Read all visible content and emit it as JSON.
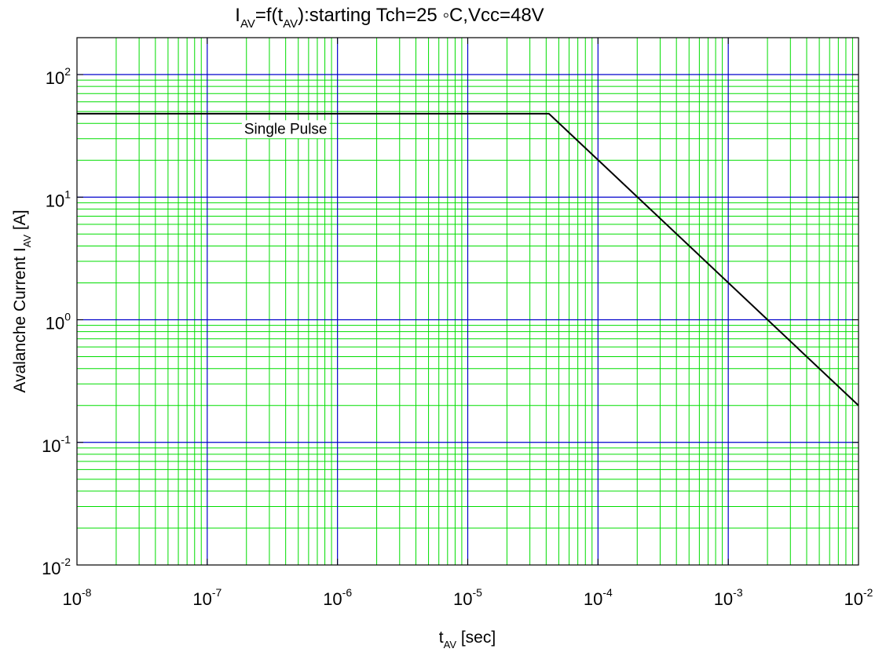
{
  "chart_data": {
    "type": "line",
    "title": {
      "parts": [
        {
          "text": "I",
          "sub": false
        },
        {
          "text": "AV",
          "sub": true
        },
        {
          "text": "=f(t",
          "sub": false
        },
        {
          "text": "AV",
          "sub": true
        },
        {
          "text": "):starting Tch=25 ◦C,Vcc=48V",
          "sub": false
        }
      ]
    },
    "xlabel": {
      "parts": [
        {
          "text": "t",
          "sub": false
        },
        {
          "text": "AV",
          "sub": true
        },
        {
          "text": " [sec]",
          "sub": false
        }
      ]
    },
    "ylabel": {
      "parts": [
        {
          "text": "Avalanche Current I",
          "sub": false
        },
        {
          "text": "AV",
          "sub": true
        },
        {
          "text": "  [A]",
          "sub": false
        }
      ]
    },
    "x_scale": "log",
    "y_scale": "log",
    "xlim": [
      1e-08,
      0.01
    ],
    "ylim": [
      0.01,
      200
    ],
    "x_ticks": [
      {
        "value": 1e-08,
        "base": "10",
        "exp": "-8"
      },
      {
        "value": 1e-07,
        "base": "10",
        "exp": "-7"
      },
      {
        "value": 1e-06,
        "base": "10",
        "exp": "-6"
      },
      {
        "value": 1e-05,
        "base": "10",
        "exp": "-5"
      },
      {
        "value": 0.0001,
        "base": "10",
        "exp": "-4"
      },
      {
        "value": 0.001,
        "base": "10",
        "exp": "-3"
      },
      {
        "value": 0.01,
        "base": "10",
        "exp": "-2"
      }
    ],
    "y_ticks": [
      {
        "value": 0.01,
        "base": "10",
        "exp": "-2"
      },
      {
        "value": 0.1,
        "base": "10",
        "exp": "-1"
      },
      {
        "value": 1,
        "base": "10",
        "exp": "0"
      },
      {
        "value": 10,
        "base": "10",
        "exp": "1"
      },
      {
        "value": 100,
        "base": "10",
        "exp": "2"
      }
    ],
    "grid": true,
    "major_grid_color": "#0000cc",
    "minor_grid_color": "#00dd00",
    "series": [
      {
        "color": "#000000",
        "x": [
          1e-08,
          4.2e-05,
          0.01
        ],
        "y": [
          48,
          48,
          0.2
        ]
      }
    ],
    "annotations": [
      {
        "text": "Single Pulse",
        "x": 4e-07,
        "y": 33
      }
    ]
  }
}
